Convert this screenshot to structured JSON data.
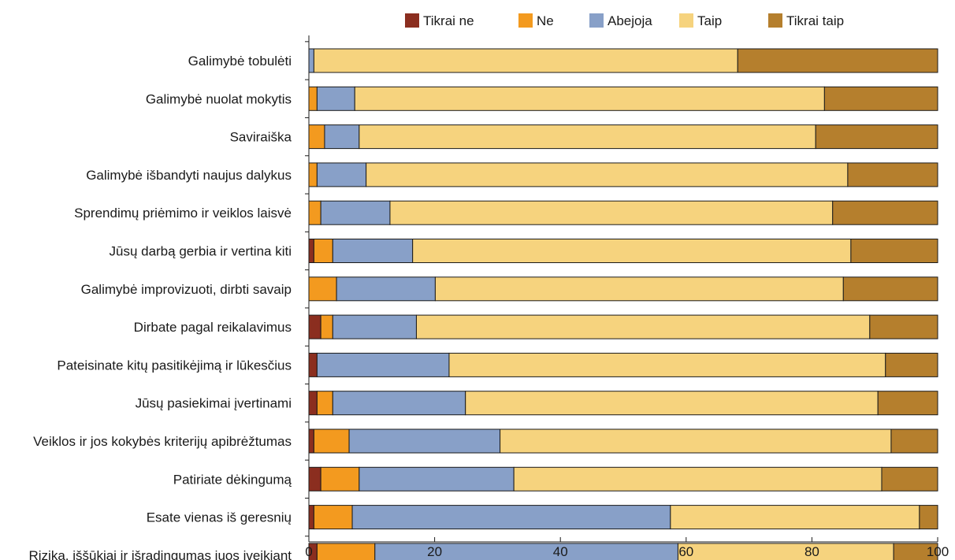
{
  "chart_data": {
    "type": "bar",
    "orientation": "horizontal",
    "stacked": true,
    "categories": [
      "Galimybė tobulėti",
      "Galimybė nuolat mokytis",
      "Saviraiška",
      "Galimybė išbandyti naujus dalykus",
      "Sprendimų priėmimo ir veiklos laisvė",
      "Jūsų darbą gerbia ir vertina kiti",
      "Galimybė improvizuoti, dirbti savaip",
      "Dirbate pagal reikalavimus",
      "Pateisinate kitų pasitikėjimą ir lūkesčius",
      "Jūsų pasiekimai įvertinami",
      "Veiklos ir jos kokybės kriterijų apibrėžtumas",
      "Patiriate dėkingumą",
      "Esate vienas iš geresnių",
      "Rizika, iššūkiai ir išradingumas juos įveikiant"
    ],
    "series": [
      {
        "name": "Tikrai ne",
        "color": "#8b2e1f",
        "values": [
          0,
          0,
          0,
          0,
          0,
          0.8,
          0,
          1.9,
          1.3,
          1.3,
          0.8,
          1.9,
          0.8,
          1.3
        ]
      },
      {
        "name": "Ne",
        "color": "#f39a1f",
        "values": [
          0,
          1.3,
          2.5,
          1.3,
          1.9,
          3.0,
          4.4,
          1.9,
          0,
          2.5,
          5.6,
          6.1,
          6.1,
          9.2
        ]
      },
      {
        "name": "Abejoja",
        "color": "#88a0c8",
        "values": [
          0.8,
          6.0,
          5.5,
          7.8,
          11.0,
          12.7,
          15.7,
          13.3,
          21.0,
          21.1,
          24.0,
          24.6,
          50.6,
          48.2
        ]
      },
      {
        "name": "Taip",
        "color": "#f6d37e",
        "values": [
          67.4,
          74.7,
          72.6,
          76.6,
          70.4,
          69.7,
          64.9,
          72.1,
          69.4,
          65.6,
          62.2,
          58.5,
          39.6,
          34.3
        ]
      },
      {
        "name": "Tikrai taip",
        "color": "#b57f2d",
        "values": [
          31.8,
          18.0,
          19.4,
          14.3,
          16.7,
          13.8,
          15.0,
          10.8,
          8.3,
          9.5,
          7.4,
          8.9,
          2.9,
          7.0
        ]
      }
    ],
    "xlim": [
      0,
      100
    ],
    "xticks": [
      0,
      20,
      40,
      60,
      80,
      100
    ],
    "legend_position": "top",
    "grid": false
  }
}
